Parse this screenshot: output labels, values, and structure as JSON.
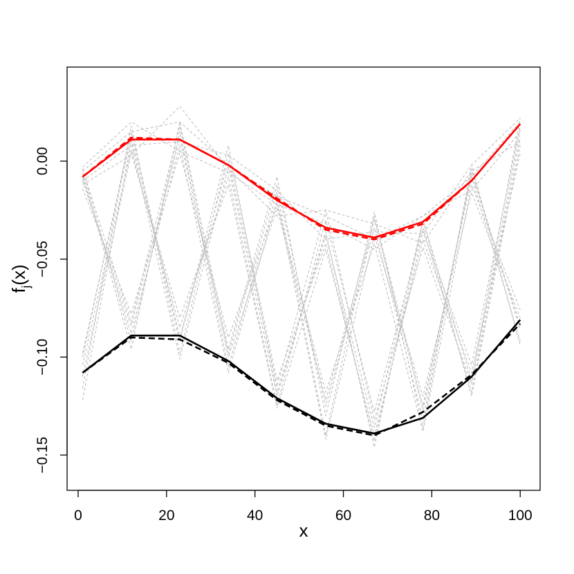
{
  "chart_data": {
    "type": "line",
    "xlabel": "x",
    "ylabel": "f",
    "ylabel_sub": "j",
    "ylabel_tail": "(x)",
    "xlim": [
      -2.5,
      104.5
    ],
    "ylim": [
      -0.168,
      0.048
    ],
    "x": [
      1,
      12,
      23,
      34,
      45,
      56,
      67,
      78,
      89,
      100
    ],
    "xticks": [
      0,
      20,
      40,
      60,
      80,
      100
    ],
    "xtick_labels": [
      "0",
      "20",
      "40",
      "60",
      "80",
      "100"
    ],
    "yticks": [
      -0.15,
      -0.1,
      -0.05,
      0.0
    ],
    "ytick_labels": [
      "−0.15",
      "−0.10",
      "−0.05",
      "0.00"
    ],
    "grid": false,
    "legend": "none",
    "series": [
      {
        "color": "#ff0000",
        "style": "solid",
        "width": 2.6,
        "values": [
          -0.008,
          0.011,
          0.011,
          -0.002,
          -0.02,
          -0.034,
          -0.039,
          -0.031,
          -0.01,
          0.019
        ]
      },
      {
        "color": "#ff0000",
        "style": "dashed",
        "width": 2.6,
        "values": [
          -0.008,
          0.012,
          0.011,
          -0.002,
          -0.019,
          -0.035,
          -0.04,
          -0.032,
          -0.01,
          0.019
        ]
      },
      {
        "color": "#000000",
        "style": "solid",
        "width": 2.6,
        "values": [
          -0.108,
          -0.089,
          -0.089,
          -0.102,
          -0.121,
          -0.134,
          -0.139,
          -0.131,
          -0.11,
          -0.081
        ]
      },
      {
        "color": "#000000",
        "style": "dashed",
        "width": 2.6,
        "values": [
          -0.108,
          -0.09,
          -0.091,
          -0.103,
          -0.122,
          -0.135,
          -0.14,
          -0.128,
          -0.109,
          -0.083
        ]
      },
      {
        "color": "#bebebe",
        "style": "dashed",
        "width": 1.1,
        "values": [
          -0.005,
          0.015,
          0.02,
          -0.002,
          -0.018,
          -0.028,
          -0.04,
          -0.028,
          -0.008,
          0.02
        ]
      },
      {
        "color": "#bebebe",
        "style": "dashed",
        "width": 1.1,
        "values": [
          -0.01,
          0.008,
          0.01,
          0.003,
          -0.015,
          -0.04,
          -0.036,
          -0.037,
          -0.002,
          0.022
        ]
      },
      {
        "color": "#bebebe",
        "style": "dashed",
        "width": 1.1,
        "values": [
          -0.003,
          0.02,
          0.005,
          -0.006,
          -0.022,
          -0.032,
          -0.045,
          -0.028,
          -0.015,
          0.015
        ]
      },
      {
        "color": "#bebebe",
        "style": "dashed",
        "width": 1.1,
        "values": [
          -0.012,
          0.003,
          0.028,
          -0.004,
          -0.028,
          -0.025,
          -0.032,
          -0.042,
          -0.005,
          0.01
        ]
      },
      {
        "color": "#bebebe",
        "style": "dashed",
        "width": 1.1,
        "values": [
          -0.098,
          0.012,
          -0.092,
          0.008,
          -0.118,
          -0.038,
          -0.136,
          -0.03,
          -0.112,
          0.022
        ]
      },
      {
        "color": "#bebebe",
        "style": "dashed",
        "width": 1.1,
        "values": [
          -0.01,
          -0.084,
          0.012,
          -0.098,
          -0.012,
          -0.125,
          -0.034,
          -0.132,
          -0.004,
          -0.086
        ]
      },
      {
        "color": "#bebebe",
        "style": "dashed",
        "width": 1.1,
        "values": [
          -0.104,
          0.006,
          -0.085,
          -0.008,
          -0.125,
          -0.03,
          -0.128,
          -0.034,
          -0.118,
          0.012
        ]
      },
      {
        "color": "#bebebe",
        "style": "dashed",
        "width": 1.1,
        "values": [
          -0.004,
          -0.092,
          0.015,
          -0.105,
          -0.016,
          -0.14,
          -0.028,
          -0.125,
          -0.008,
          -0.092
        ]
      },
      {
        "color": "#bebebe",
        "style": "dashed",
        "width": 1.1,
        "values": [
          -0.116,
          0.018,
          -0.098,
          0.004,
          -0.112,
          -0.042,
          -0.143,
          -0.036,
          -0.104,
          0.018
        ]
      },
      {
        "color": "#bebebe",
        "style": "dashed",
        "width": 1.1,
        "values": [
          -0.014,
          -0.078,
          0.004,
          -0.09,
          -0.022,
          -0.118,
          -0.042,
          -0.138,
          -0.012,
          -0.076
        ]
      },
      {
        "color": "#bebebe",
        "style": "dashed",
        "width": 1.1,
        "values": [
          -0.122,
          0.01,
          -0.101,
          -0.003,
          -0.12,
          -0.036,
          -0.146,
          -0.03,
          -0.12,
          0.008
        ]
      },
      {
        "color": "#bebebe",
        "style": "dashed",
        "width": 1.1,
        "values": [
          -0.006,
          -0.096,
          0.02,
          -0.096,
          -0.008,
          -0.13,
          -0.026,
          -0.136,
          -0.002,
          -0.094
        ]
      },
      {
        "color": "#bebebe",
        "style": "dashed",
        "width": 1.1,
        "values": [
          -0.11,
          0.004,
          -0.08,
          -0.012,
          -0.126,
          -0.045,
          -0.14,
          -0.04,
          -0.108,
          0.004
        ]
      },
      {
        "color": "#bebebe",
        "style": "dashed",
        "width": 1.1,
        "values": [
          -0.008,
          -0.088,
          0.008,
          -0.108,
          -0.02,
          -0.142,
          -0.038,
          -0.12,
          -0.016,
          -0.08
        ]
      },
      {
        "color": "#bebebe",
        "style": "dashed",
        "width": 1.1,
        "values": [
          -0.1,
          0.015,
          -0.09,
          0.0,
          -0.115,
          -0.025,
          -0.132,
          -0.044,
          -0.114,
          0.016
        ]
      },
      {
        "color": "#bebebe",
        "style": "dashed",
        "width": 1.1,
        "values": [
          -0.004,
          -0.082,
          0.018,
          -0.1,
          -0.024,
          -0.122,
          -0.03,
          -0.127,
          -0.006,
          -0.084
        ]
      }
    ]
  }
}
